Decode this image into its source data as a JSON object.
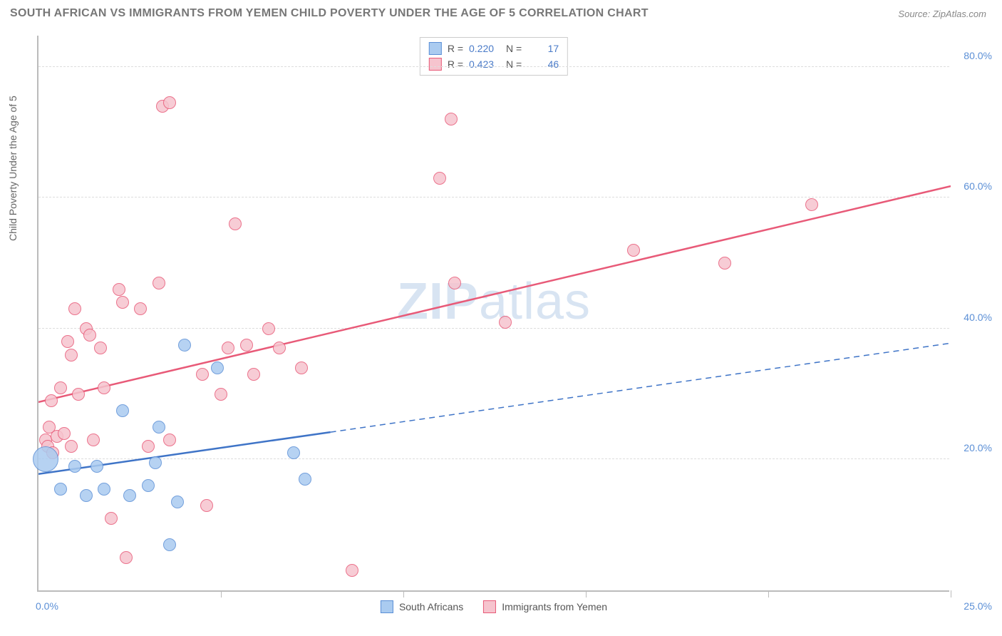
{
  "header": {
    "title": "SOUTH AFRICAN VS IMMIGRANTS FROM YEMEN CHILD POVERTY UNDER THE AGE OF 5 CORRELATION CHART",
    "source_label": "Source:",
    "source_name": "ZipAtlas.com"
  },
  "chart": {
    "type": "scatter",
    "y_axis_label": "Child Poverty Under the Age of 5",
    "xlim": [
      0,
      25
    ],
    "ylim": [
      0,
      85
    ],
    "y_ticks": [
      20,
      40,
      60,
      80
    ],
    "y_tick_labels": [
      "20.0%",
      "40.0%",
      "60.0%",
      "80.0%"
    ],
    "x_tick_positions": [
      0,
      5,
      10,
      15,
      20,
      25
    ],
    "x_min_label": "0.0%",
    "x_max_label": "25.0%",
    "grid_color": "#dddddd",
    "axis_color": "#bbbbbb",
    "background_color": "#ffffff",
    "watermark": {
      "bold": "ZIP",
      "rest": "atlas"
    }
  },
  "legend_top": {
    "rows": [
      {
        "swatch_fill": "#aacbf0",
        "swatch_stroke": "#5b8fd6",
        "r_label": "R =",
        "r_value": "0.220",
        "n_label": "N =",
        "n_value": "17"
      },
      {
        "swatch_fill": "#f6c4ce",
        "swatch_stroke": "#e85a78",
        "r_label": "R =",
        "r_value": "0.423",
        "n_label": "N =",
        "n_value": "46"
      }
    ]
  },
  "legend_bottom": {
    "items": [
      {
        "swatch_fill": "#aacbf0",
        "swatch_stroke": "#5b8fd6",
        "label": "South Africans"
      },
      {
        "swatch_fill": "#f6c4ce",
        "swatch_stroke": "#e85a78",
        "label": "Immigrants from Yemen"
      }
    ]
  },
  "series": {
    "south_africans": {
      "color_fill": "#aacbf0",
      "color_stroke": "#5b8fd6",
      "marker_radius": 9,
      "trend": {
        "x1": 0,
        "y1": 18,
        "x2": 25,
        "y2": 38,
        "solid_until_x": 8,
        "stroke": "#3f74c7",
        "width": 2.5
      },
      "points": [
        {
          "x": 0.2,
          "y": 20,
          "r": 18
        },
        {
          "x": 0.6,
          "y": 15.5
        },
        {
          "x": 1.0,
          "y": 19
        },
        {
          "x": 1.3,
          "y": 14.5
        },
        {
          "x": 1.6,
          "y": 19
        },
        {
          "x": 1.8,
          "y": 15.5
        },
        {
          "x": 2.3,
          "y": 27.5
        },
        {
          "x": 2.5,
          "y": 14.5
        },
        {
          "x": 3.2,
          "y": 19.5
        },
        {
          "x": 3.3,
          "y": 25
        },
        {
          "x": 3.6,
          "y": 7
        },
        {
          "x": 3.8,
          "y": 13.5
        },
        {
          "x": 4.0,
          "y": 37.5
        },
        {
          "x": 4.9,
          "y": 34
        },
        {
          "x": 7.0,
          "y": 21
        },
        {
          "x": 7.3,
          "y": 17
        },
        {
          "x": 3.0,
          "y": 16
        }
      ]
    },
    "yemen": {
      "color_fill": "#f6c4ce",
      "color_stroke": "#e85a78",
      "marker_radius": 9,
      "trend": {
        "x1": 0,
        "y1": 29,
        "x2": 25,
        "y2": 62,
        "stroke": "#e85a78",
        "width": 2.5
      },
      "points": [
        {
          "x": 0.2,
          "y": 23
        },
        {
          "x": 0.25,
          "y": 22
        },
        {
          "x": 0.3,
          "y": 25
        },
        {
          "x": 0.35,
          "y": 29
        },
        {
          "x": 0.4,
          "y": 21
        },
        {
          "x": 0.5,
          "y": 23.5
        },
        {
          "x": 0.6,
          "y": 31
        },
        {
          "x": 0.7,
          "y": 24
        },
        {
          "x": 0.8,
          "y": 38
        },
        {
          "x": 0.9,
          "y": 36
        },
        {
          "x": 1.0,
          "y": 43
        },
        {
          "x": 1.1,
          "y": 30
        },
        {
          "x": 1.3,
          "y": 40
        },
        {
          "x": 1.4,
          "y": 39
        },
        {
          "x": 1.5,
          "y": 23
        },
        {
          "x": 1.7,
          "y": 37
        },
        {
          "x": 1.8,
          "y": 31
        },
        {
          "x": 2.0,
          "y": 11
        },
        {
          "x": 2.2,
          "y": 46
        },
        {
          "x": 2.3,
          "y": 44
        },
        {
          "x": 2.4,
          "y": 5
        },
        {
          "x": 2.8,
          "y": 43
        },
        {
          "x": 3.3,
          "y": 47
        },
        {
          "x": 3.4,
          "y": 74
        },
        {
          "x": 3.6,
          "y": 74.5
        },
        {
          "x": 3.6,
          "y": 23
        },
        {
          "x": 4.5,
          "y": 33
        },
        {
          "x": 4.6,
          "y": 13
        },
        {
          "x": 5.0,
          "y": 30
        },
        {
          "x": 5.2,
          "y": 37
        },
        {
          "x": 5.4,
          "y": 56
        },
        {
          "x": 5.7,
          "y": 37.5
        },
        {
          "x": 5.9,
          "y": 33
        },
        {
          "x": 6.3,
          "y": 40
        },
        {
          "x": 6.6,
          "y": 37
        },
        {
          "x": 7.2,
          "y": 34
        },
        {
          "x": 8.6,
          "y": 3
        },
        {
          "x": 11.0,
          "y": 63
        },
        {
          "x": 11.3,
          "y": 72
        },
        {
          "x": 11.4,
          "y": 47
        },
        {
          "x": 12.8,
          "y": 41
        },
        {
          "x": 16.3,
          "y": 52
        },
        {
          "x": 18.8,
          "y": 50
        },
        {
          "x": 21.2,
          "y": 59
        },
        {
          "x": 3.0,
          "y": 22
        },
        {
          "x": 0.9,
          "y": 22
        }
      ]
    }
  }
}
